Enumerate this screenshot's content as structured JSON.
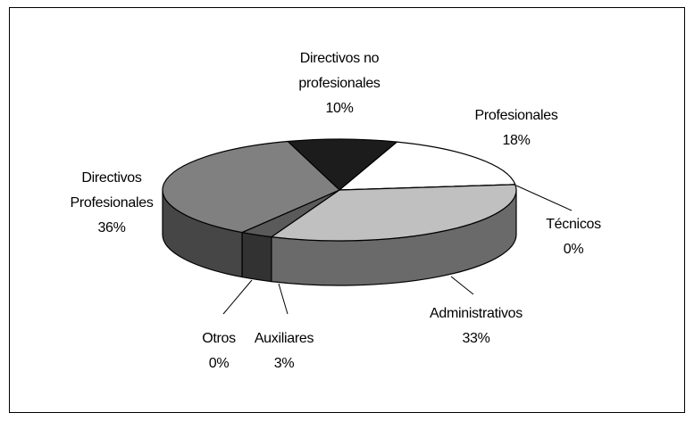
{
  "chart_data": {
    "type": "pie",
    "categories": [
      "Directivos no profesionales",
      "Profesionales",
      "Técnicos",
      "Administrativos",
      "Auxiliares",
      "Otros",
      "Directivos Profesionales"
    ],
    "values": [
      10,
      18,
      0,
      33,
      3,
      0,
      36
    ],
    "value_labels": [
      "10%",
      "18%",
      "0%",
      "33%",
      "3%",
      "0%",
      "36%"
    ],
    "colors": [
      "#1c1c1c",
      "#ffffff",
      "#e0e0e0",
      "#c0c0c0",
      "#5a5a5a",
      "#3a3a3a",
      "#808080"
    ]
  }
}
